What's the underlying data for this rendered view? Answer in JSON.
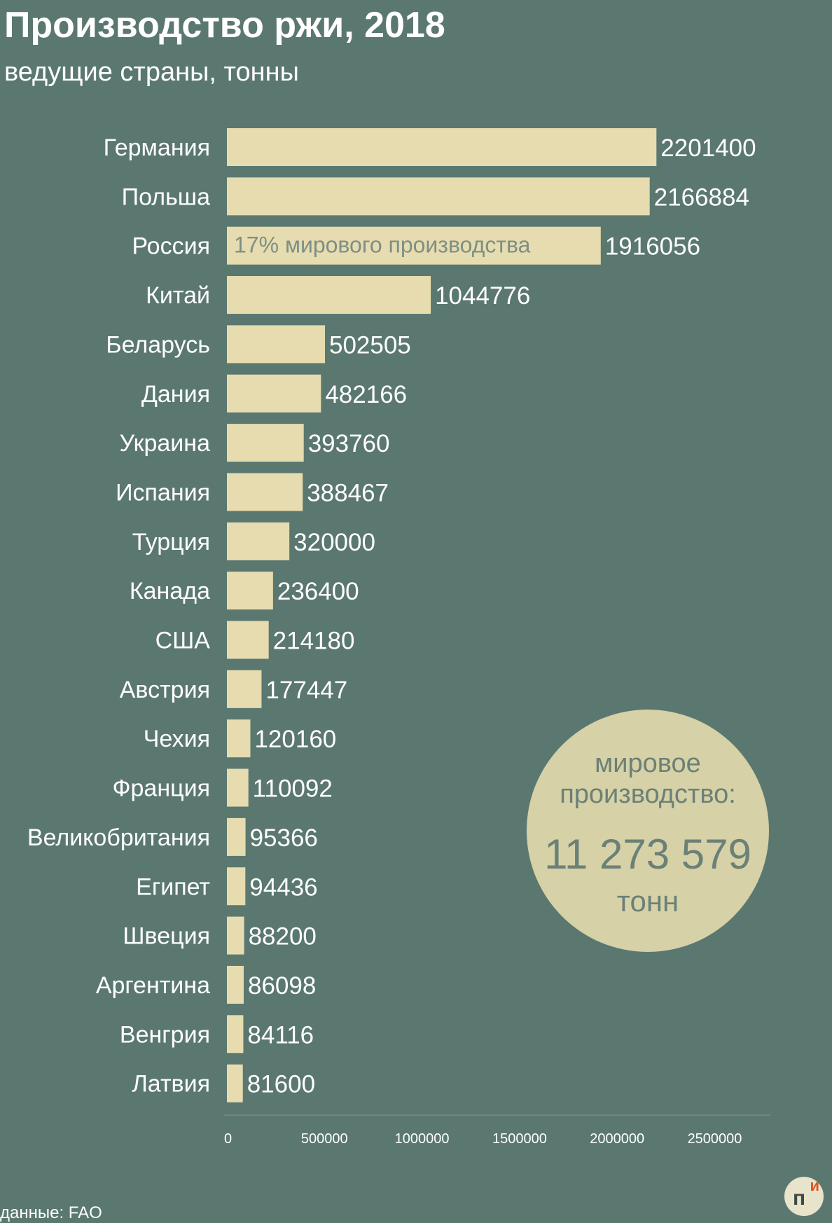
{
  "title": "Производство ржи, 2018",
  "subtitle": "ведущие страны, тонны",
  "colors": {
    "background": "#5b7870",
    "bar": "#e6dcaf",
    "text": "#ffffff",
    "circle": "#d6d1a6",
    "circle_text": "#6b8077",
    "annotation_text": "#7d8f86"
  },
  "chart_data": {
    "type": "bar",
    "orientation": "horizontal",
    "categories": [
      "Германия",
      "Польша",
      "Россия",
      "Китай",
      "Беларусь",
      "Дания",
      "Украина",
      "Испания",
      "Турция",
      "Канада",
      "США",
      "Австрия",
      "Чехия",
      "Франция",
      "Великобритания",
      "Египет",
      "Швеция",
      "Аргентина",
      "Венгрия",
      "Латвия"
    ],
    "values": [
      2201400,
      2166884,
      1916056,
      1044776,
      502505,
      482166,
      393760,
      388467,
      320000,
      236400,
      214180,
      177447,
      120160,
      110092,
      95366,
      94436,
      88200,
      86098,
      84116,
      81600
    ],
    "value_labels": [
      "2201400",
      "2166884",
      "1916056",
      "1044776",
      "502505",
      "482166",
      "393760",
      "388467",
      "320000",
      "236400",
      "214180",
      "177447",
      "120160",
      "110092",
      "95366",
      "94436",
      "88200",
      "86098",
      "84116",
      "81600"
    ],
    "x_ticks": [
      0,
      500000,
      1000000,
      1500000,
      2000000,
      2500000
    ],
    "x_tick_labels": [
      "0",
      "500000",
      "1000000",
      "1500000",
      "2000000",
      "2500000"
    ],
    "xlim": [
      0,
      2800000
    ],
    "grid": false,
    "annotation": {
      "category": "Россия",
      "text": "17% мирового производства"
    }
  },
  "world_production": {
    "label": "мировое производство:",
    "value": "11 273 579",
    "unit": "тонн"
  },
  "source": "данные: FAO",
  "logo": {
    "letter_main": "п",
    "letter_accent": "и"
  }
}
